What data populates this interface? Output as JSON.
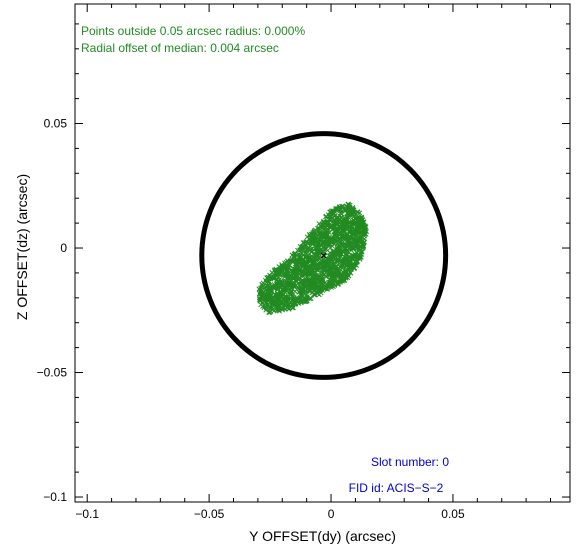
{
  "chart_data": {
    "type": "scatter",
    "xlabel": "Y OFFSET(dy) (arcsec)",
    "ylabel": "Z OFFSET(dz) (arcsec)",
    "xlim": [
      -0.105,
      0.098
    ],
    "ylim": [
      -0.102,
      0.098
    ],
    "xticks": [
      -0.1,
      -0.05,
      0,
      0.05
    ],
    "yticks": [
      -0.1,
      -0.05,
      0,
      0.05
    ],
    "xtick_labels": [
      "−0.1",
      "−0.05",
      "0",
      "0.05"
    ],
    "ytick_labels": [
      "−0.1",
      "−0.05",
      "0",
      "0.05"
    ],
    "circle": {
      "center": [
        -0.003,
        -0.003
      ],
      "radius": 0.05,
      "color": "#000000"
    },
    "median": [
      -0.003,
      -0.003
    ],
    "point_color": "#228b22",
    "point_marker": "x",
    "point_cloud": {
      "description_shape": "elongated elliptical cluster",
      "outline": [
        [
          -0.03,
          -0.017
        ],
        [
          -0.029,
          -0.023
        ],
        [
          -0.026,
          -0.026
        ],
        [
          -0.018,
          -0.025
        ],
        [
          -0.01,
          -0.022
        ],
        [
          -0.002,
          -0.017
        ],
        [
          0.006,
          -0.013
        ],
        [
          0.012,
          -0.005
        ],
        [
          0.015,
          0.007
        ],
        [
          0.012,
          0.014
        ],
        [
          0.007,
          0.018
        ],
        [
          0.0,
          0.015
        ],
        [
          -0.005,
          0.01
        ],
        [
          -0.011,
          0.003
        ],
        [
          -0.018,
          -0.005
        ],
        [
          -0.025,
          -0.01
        ]
      ],
      "n_points": 1600
    },
    "annotations": [
      {
        "text": "Points outside 0.05 arcsec radius: 0.000%",
        "color": "#228b22",
        "position": "top-left"
      },
      {
        "text": "Radial offset of median: 0.004 arcsec",
        "color": "#228b22",
        "position": "top-left"
      },
      {
        "text": "Slot number: 0",
        "color": "#0000cc",
        "position": "bottom-right"
      },
      {
        "text": "FID id: ACIS−S−2",
        "color": "#0000cc",
        "position": "bottom-right"
      }
    ]
  }
}
